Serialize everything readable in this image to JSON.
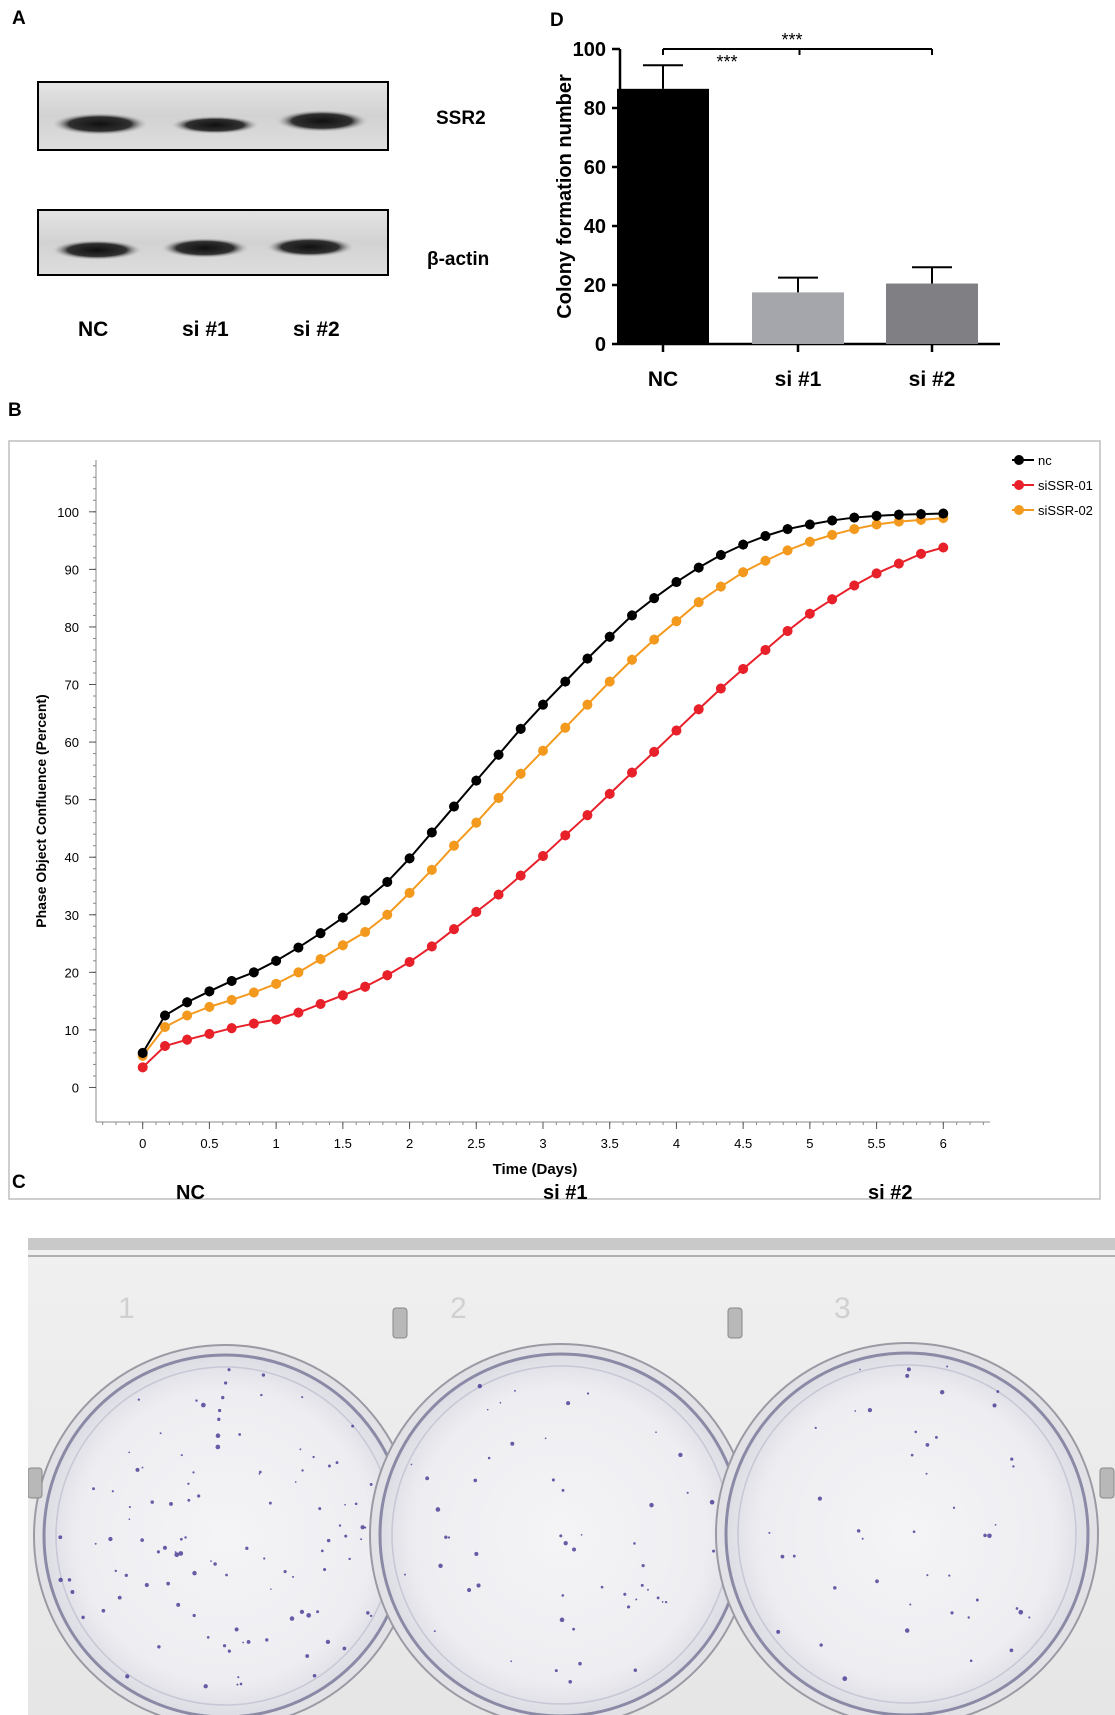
{
  "panels": {
    "a": {
      "letter": "A",
      "bands": [
        "SSR2",
        "β-actin"
      ],
      "lanes": [
        "NC",
        "si #1",
        "si #2"
      ]
    },
    "b": {
      "letter": "B"
    },
    "c": {
      "letter": "C",
      "wells": [
        "NC",
        "si #1",
        "si #2"
      ],
      "well_numbers": [
        "1",
        "2",
        "3"
      ]
    },
    "d": {
      "letter": "D"
    }
  },
  "chart_data": [
    {
      "id": "colony-bar",
      "type": "bar",
      "categories": [
        "NC",
        "si #1",
        "si #2"
      ],
      "values": [
        86.5,
        17.5,
        20.5
      ],
      "errors": [
        8,
        5,
        5.5
      ],
      "colors": [
        "#000000",
        "#a4a6ac",
        "#808084"
      ],
      "title": "",
      "xlabel": "",
      "ylabel": "Colony formation number",
      "ylim": [
        0,
        100
      ],
      "yticks": [
        0,
        20,
        40,
        60,
        80,
        100
      ],
      "annotations": [
        {
          "text": "***",
          "from": "NC",
          "to": "si #1"
        },
        {
          "text": "***",
          "from": "NC",
          "to": "si #2"
        }
      ],
      "grid": false,
      "legend": "none"
    },
    {
      "id": "confluence-line",
      "type": "line",
      "xlabel": "Time (Days)",
      "ylabel": "Phase Object Confluence (Percent)",
      "xlim": [
        -0.35,
        6.35
      ],
      "ylim": [
        -6,
        109
      ],
      "xticks": [
        "0",
        "0.5",
        "1",
        "1.5",
        "2",
        "2.5",
        "3",
        "3.5",
        "4",
        "4.5",
        "5",
        "5.5",
        "6"
      ],
      "yticks": [
        "0",
        "10",
        "20",
        "30",
        "40",
        "50",
        "60",
        "70",
        "80",
        "90",
        "100"
      ],
      "x": [
        0,
        0.167,
        0.333,
        0.5,
        0.667,
        0.833,
        1,
        1.167,
        1.333,
        1.5,
        1.667,
        1.833,
        2,
        2.167,
        2.333,
        2.5,
        2.667,
        2.833,
        3,
        3.167,
        3.333,
        3.5,
        3.667,
        3.833,
        4,
        4.167,
        4.333,
        4.5,
        4.667,
        4.833,
        5,
        5.167,
        5.333,
        5.5,
        5.667,
        5.833,
        6
      ],
      "series": [
        {
          "name": "nc",
          "color": "#000000",
          "values": [
            6,
            12.5,
            14.8,
            16.7,
            18.5,
            20,
            22,
            24.3,
            26.8,
            29.5,
            32.5,
            35.7,
            39.8,
            44.3,
            48.8,
            53.3,
            57.8,
            62.3,
            66.5,
            70.5,
            74.5,
            78.3,
            82,
            85,
            87.8,
            90.3,
            92.5,
            94.3,
            95.8,
            97,
            97.8,
            98.5,
            99,
            99.3,
            99.5,
            99.6,
            99.7
          ]
        },
        {
          "name": "siSSR-01",
          "color": "#e8202a",
          "values": [
            3.5,
            7.2,
            8.3,
            9.3,
            10.3,
            11.1,
            11.8,
            13,
            14.5,
            16,
            17.5,
            19.5,
            21.8,
            24.5,
            27.5,
            30.5,
            33.5,
            36.8,
            40.2,
            43.8,
            47.3,
            51,
            54.7,
            58.3,
            62,
            65.7,
            69.3,
            72.7,
            76,
            79.3,
            82.3,
            84.8,
            87.2,
            89.3,
            91,
            92.7,
            93.8
          ]
        },
        {
          "name": "siSSR-02",
          "color": "#f39a1e",
          "values": [
            5.5,
            10.5,
            12.5,
            14,
            15.2,
            16.5,
            18,
            20,
            22.3,
            24.7,
            27,
            30,
            33.8,
            37.8,
            42,
            46,
            50.3,
            54.5,
            58.5,
            62.5,
            66.5,
            70.5,
            74.3,
            77.8,
            81,
            84.3,
            87,
            89.5,
            91.5,
            93.3,
            94.8,
            96,
            97,
            97.8,
            98.3,
            98.6,
            98.9
          ]
        }
      ],
      "legend": "top-right",
      "grid": false
    }
  ]
}
